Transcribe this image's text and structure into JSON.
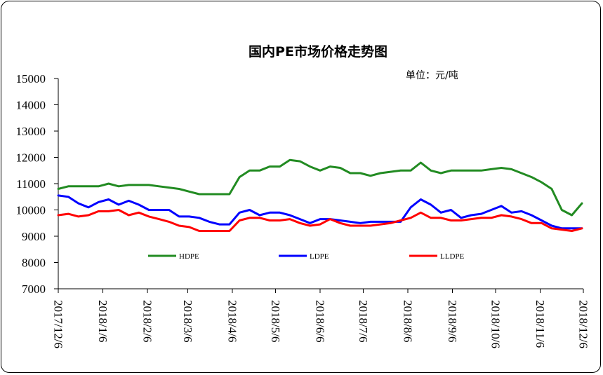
{
  "chart_data": {
    "type": "line",
    "title": "国内PE市场价格走势图",
    "unit_label": "单位：元/吨",
    "ylim": [
      7000,
      15000
    ],
    "y_ticks": [
      7000,
      8000,
      9000,
      10000,
      11000,
      12000,
      13000,
      14000,
      15000
    ],
    "x_start": "2017/12/6",
    "x_end": "2018/12/6",
    "x_ticks": [
      "2017/12/6",
      "2018/1/6",
      "2018/2/6",
      "2018/3/6",
      "2018/4/6",
      "2018/5/6",
      "2018/6/6",
      "2018/7/6",
      "2018/8/6",
      "2018/9/6",
      "2018/10/6",
      "2018/11/6",
      "2018/12/6"
    ],
    "grid": false,
    "legend_position": "inside-bottom",
    "series": [
      {
        "name": "HDPE",
        "color": "#228B22",
        "points": [
          [
            "2017/12/6",
            10800
          ],
          [
            "2017/12/13",
            10900
          ],
          [
            "2017/12/20",
            10900
          ],
          [
            "2017/12/27",
            10900
          ],
          [
            "2018/1/3",
            10900
          ],
          [
            "2018/1/10",
            11000
          ],
          [
            "2018/1/17",
            10900
          ],
          [
            "2018/1/24",
            10950
          ],
          [
            "2018/1/31",
            10950
          ],
          [
            "2018/2/7",
            10950
          ],
          [
            "2018/2/14",
            10900
          ],
          [
            "2018/2/21",
            10850
          ],
          [
            "2018/2/28",
            10800
          ],
          [
            "2018/3/7",
            10700
          ],
          [
            "2018/3/14",
            10600
          ],
          [
            "2018/3/21",
            10600
          ],
          [
            "2018/3/28",
            10600
          ],
          [
            "2018/4/4",
            10600
          ],
          [
            "2018/4/11",
            11250
          ],
          [
            "2018/4/18",
            11500
          ],
          [
            "2018/4/25",
            11500
          ],
          [
            "2018/5/2",
            11650
          ],
          [
            "2018/5/9",
            11650
          ],
          [
            "2018/5/16",
            11900
          ],
          [
            "2018/5/23",
            11850
          ],
          [
            "2018/5/30",
            11650
          ],
          [
            "2018/6/6",
            11500
          ],
          [
            "2018/6/13",
            11650
          ],
          [
            "2018/6/20",
            11600
          ],
          [
            "2018/6/27",
            11400
          ],
          [
            "2018/7/4",
            11400
          ],
          [
            "2018/7/11",
            11300
          ],
          [
            "2018/7/18",
            11400
          ],
          [
            "2018/7/25",
            11450
          ],
          [
            "2018/8/1",
            11500
          ],
          [
            "2018/8/8",
            11500
          ],
          [
            "2018/8/15",
            11800
          ],
          [
            "2018/8/22",
            11500
          ],
          [
            "2018/8/29",
            11400
          ],
          [
            "2018/9/5",
            11500
          ],
          [
            "2018/9/12",
            11500
          ],
          [
            "2018/9/19",
            11500
          ],
          [
            "2018/9/26",
            11500
          ],
          [
            "2018/10/3",
            11550
          ],
          [
            "2018/10/10",
            11600
          ],
          [
            "2018/10/17",
            11550
          ],
          [
            "2018/10/24",
            11400
          ],
          [
            "2018/10/31",
            11250
          ],
          [
            "2018/11/7",
            11050
          ],
          [
            "2018/11/14",
            10800
          ],
          [
            "2018/11/21",
            10000
          ],
          [
            "2018/11/28",
            9800
          ],
          [
            "2018/12/5",
            10250
          ]
        ]
      },
      {
        "name": "LDPE",
        "color": "#0000FF",
        "points": [
          [
            "2017/12/6",
            10550
          ],
          [
            "2017/12/13",
            10500
          ],
          [
            "2017/12/20",
            10250
          ],
          [
            "2017/12/27",
            10100
          ],
          [
            "2018/1/3",
            10300
          ],
          [
            "2018/1/10",
            10400
          ],
          [
            "2018/1/17",
            10200
          ],
          [
            "2018/1/24",
            10350
          ],
          [
            "2018/1/31",
            10200
          ],
          [
            "2018/2/7",
            10000
          ],
          [
            "2018/2/14",
            10000
          ],
          [
            "2018/2/21",
            10000
          ],
          [
            "2018/2/28",
            9750
          ],
          [
            "2018/3/7",
            9750
          ],
          [
            "2018/3/14",
            9700
          ],
          [
            "2018/3/21",
            9550
          ],
          [
            "2018/3/28",
            9450
          ],
          [
            "2018/4/4",
            9450
          ],
          [
            "2018/4/11",
            9900
          ],
          [
            "2018/4/18",
            10000
          ],
          [
            "2018/4/25",
            9800
          ],
          [
            "2018/5/2",
            9900
          ],
          [
            "2018/5/9",
            9900
          ],
          [
            "2018/5/16",
            9800
          ],
          [
            "2018/5/23",
            9650
          ],
          [
            "2018/5/30",
            9500
          ],
          [
            "2018/6/6",
            9650
          ],
          [
            "2018/6/13",
            9650
          ],
          [
            "2018/6/20",
            9600
          ],
          [
            "2018/6/27",
            9550
          ],
          [
            "2018/7/4",
            9500
          ],
          [
            "2018/7/11",
            9550
          ],
          [
            "2018/7/18",
            9550
          ],
          [
            "2018/7/25",
            9550
          ],
          [
            "2018/8/1",
            9550
          ],
          [
            "2018/8/8",
            10100
          ],
          [
            "2018/8/15",
            10400
          ],
          [
            "2018/8/22",
            10200
          ],
          [
            "2018/8/29",
            9900
          ],
          [
            "2018/9/5",
            10000
          ],
          [
            "2018/9/12",
            9700
          ],
          [
            "2018/9/19",
            9800
          ],
          [
            "2018/9/26",
            9850
          ],
          [
            "2018/10/3",
            10000
          ],
          [
            "2018/10/10",
            10150
          ],
          [
            "2018/10/17",
            9900
          ],
          [
            "2018/10/24",
            9950
          ],
          [
            "2018/10/31",
            9800
          ],
          [
            "2018/11/7",
            9600
          ],
          [
            "2018/11/14",
            9400
          ],
          [
            "2018/11/21",
            9300
          ],
          [
            "2018/11/28",
            9300
          ],
          [
            "2018/12/5",
            9300
          ]
        ]
      },
      {
        "name": "LLDPE",
        "color": "#FF0000",
        "points": [
          [
            "2017/12/6",
            9800
          ],
          [
            "2017/12/13",
            9850
          ],
          [
            "2017/12/20",
            9750
          ],
          [
            "2017/12/27",
            9800
          ],
          [
            "2018/1/3",
            9950
          ],
          [
            "2018/1/10",
            9950
          ],
          [
            "2018/1/17",
            10000
          ],
          [
            "2018/1/24",
            9800
          ],
          [
            "2018/1/31",
            9900
          ],
          [
            "2018/2/7",
            9750
          ],
          [
            "2018/2/14",
            9650
          ],
          [
            "2018/2/21",
            9550
          ],
          [
            "2018/2/28",
            9400
          ],
          [
            "2018/3/7",
            9350
          ],
          [
            "2018/3/14",
            9200
          ],
          [
            "2018/3/21",
            9200
          ],
          [
            "2018/3/28",
            9200
          ],
          [
            "2018/4/4",
            9200
          ],
          [
            "2018/4/11",
            9600
          ],
          [
            "2018/4/18",
            9700
          ],
          [
            "2018/4/25",
            9700
          ],
          [
            "2018/5/2",
            9600
          ],
          [
            "2018/5/9",
            9600
          ],
          [
            "2018/5/16",
            9650
          ],
          [
            "2018/5/23",
            9500
          ],
          [
            "2018/5/30",
            9400
          ],
          [
            "2018/6/6",
            9450
          ],
          [
            "2018/6/13",
            9650
          ],
          [
            "2018/6/20",
            9500
          ],
          [
            "2018/6/27",
            9400
          ],
          [
            "2018/7/4",
            9400
          ],
          [
            "2018/7/11",
            9400
          ],
          [
            "2018/7/18",
            9450
          ],
          [
            "2018/7/25",
            9500
          ],
          [
            "2018/8/1",
            9600
          ],
          [
            "2018/8/8",
            9700
          ],
          [
            "2018/8/15",
            9900
          ],
          [
            "2018/8/22",
            9700
          ],
          [
            "2018/8/29",
            9700
          ],
          [
            "2018/9/5",
            9600
          ],
          [
            "2018/9/12",
            9600
          ],
          [
            "2018/9/19",
            9650
          ],
          [
            "2018/9/26",
            9700
          ],
          [
            "2018/10/3",
            9700
          ],
          [
            "2018/10/10",
            9800
          ],
          [
            "2018/10/17",
            9750
          ],
          [
            "2018/10/24",
            9650
          ],
          [
            "2018/10/31",
            9500
          ],
          [
            "2018/11/7",
            9500
          ],
          [
            "2018/11/14",
            9300
          ],
          [
            "2018/11/21",
            9250
          ],
          [
            "2018/11/28",
            9200
          ],
          [
            "2018/12/5",
            9300
          ]
        ]
      }
    ]
  }
}
